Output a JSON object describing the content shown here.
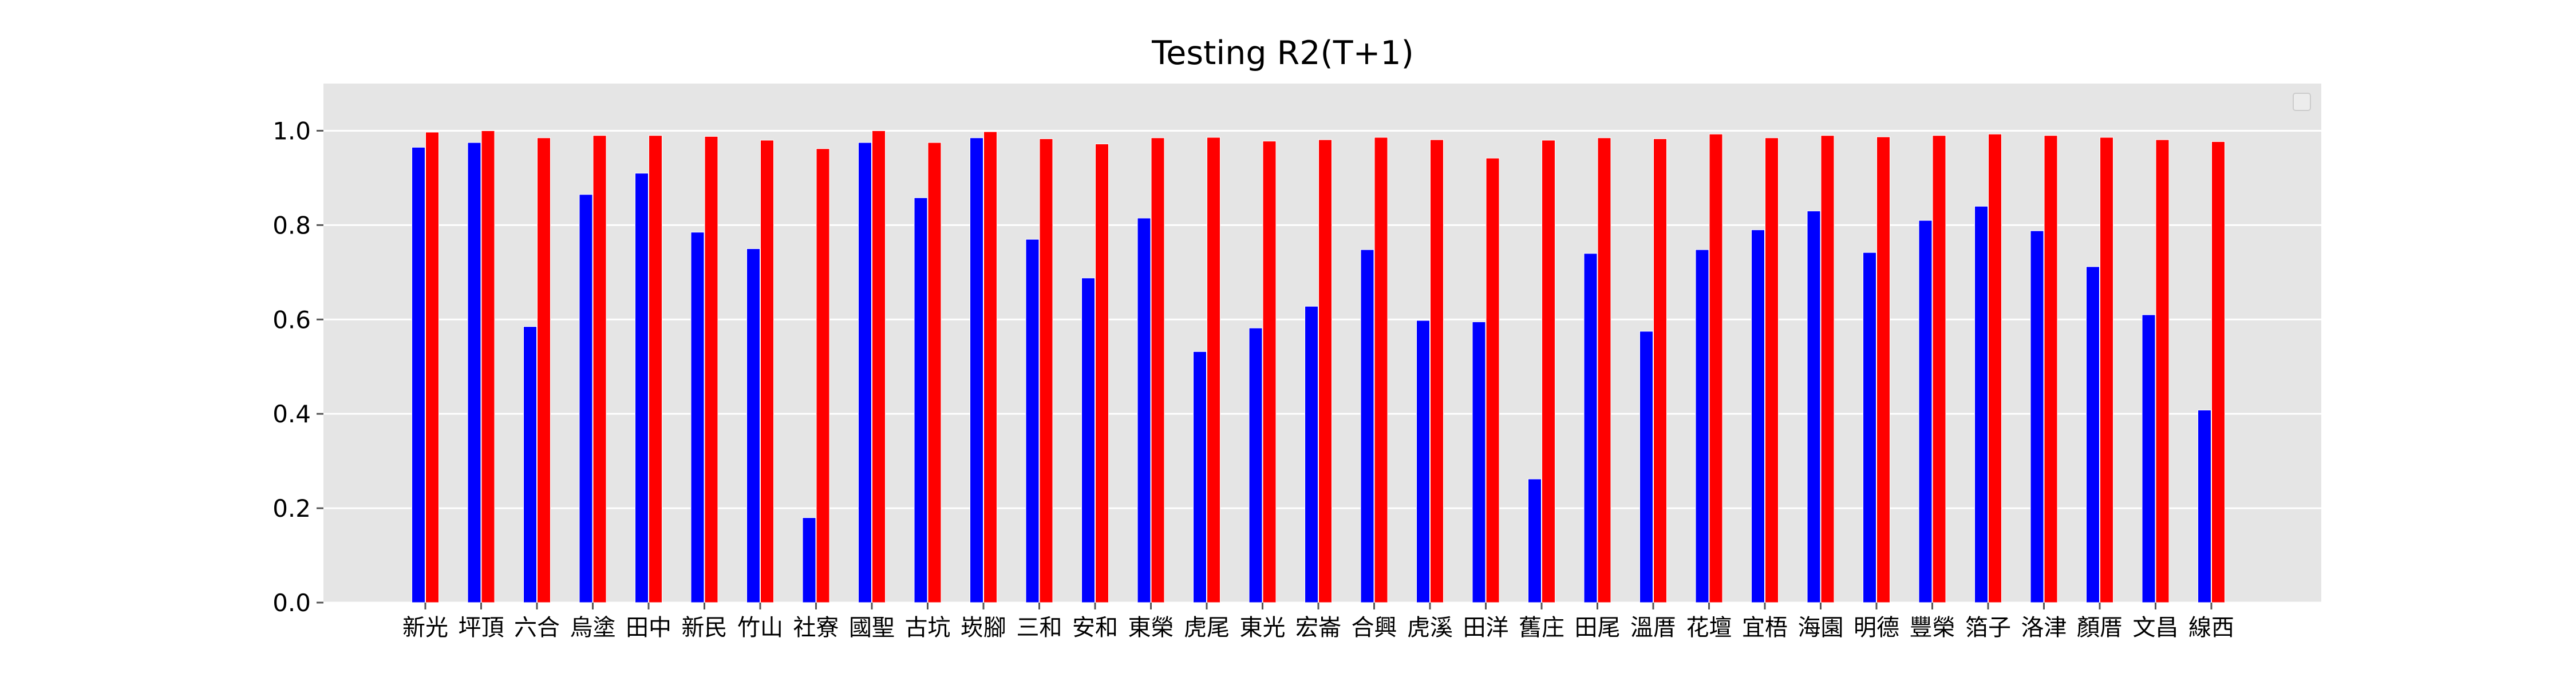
{
  "chart_data": {
    "type": "bar",
    "title": "Testing R2(T+1)",
    "xlabel": "",
    "ylabel": "",
    "ylim": [
      0,
      1.1
    ],
    "yticks": [
      0.0,
      0.2,
      0.4,
      0.6,
      0.8,
      1.0
    ],
    "ytick_labels": [
      "0.0",
      "0.2",
      "0.4",
      "0.6",
      "0.8",
      "1.0"
    ],
    "grid": true,
    "legend": "top-right",
    "categories": [
      "新光",
      "坪頂",
      "六合",
      "烏塗",
      "田中",
      "新民",
      "竹山",
      "社寮",
      "國聖",
      "古坑",
      "崁腳",
      "三和",
      "安和",
      "東榮",
      "虎尾",
      "東光",
      "宏崙",
      "合興",
      "虎溪",
      "田洋",
      "舊庄",
      "田尾",
      "溫厝",
      "花壇",
      "宜梧",
      "海園",
      "明德",
      "豐榮",
      "箔子",
      "洛津",
      "顏厝",
      "文昌",
      "線西"
    ],
    "series": [
      {
        "color": "#0000ff",
        "values": [
          0.965,
          0.975,
          0.585,
          0.865,
          0.91,
          0.785,
          0.75,
          0.18,
          0.975,
          0.858,
          0.985,
          0.77,
          0.688,
          0.815,
          0.532,
          0.582,
          0.628,
          0.748,
          0.598,
          0.595,
          0.262,
          0.74,
          0.575,
          0.748,
          0.79,
          0.83,
          0.742,
          0.81,
          0.84,
          0.788,
          0.712,
          0.61,
          0.408
        ]
      },
      {
        "color": "#ff0000",
        "values": [
          0.997,
          1.0,
          0.985,
          0.99,
          0.99,
          0.988,
          0.98,
          0.962,
          1.0,
          0.975,
          0.998,
          0.983,
          0.972,
          0.985,
          0.986,
          0.978,
          0.981,
          0.986,
          0.981,
          0.942,
          0.98,
          0.985,
          0.983,
          0.993,
          0.985,
          0.99,
          0.987,
          0.99,
          0.993,
          0.99,
          0.986,
          0.981,
          0.977
        ]
      }
    ],
    "colors": {
      "plot_background": "#e5e5e5",
      "grid": "#ffffff"
    }
  }
}
